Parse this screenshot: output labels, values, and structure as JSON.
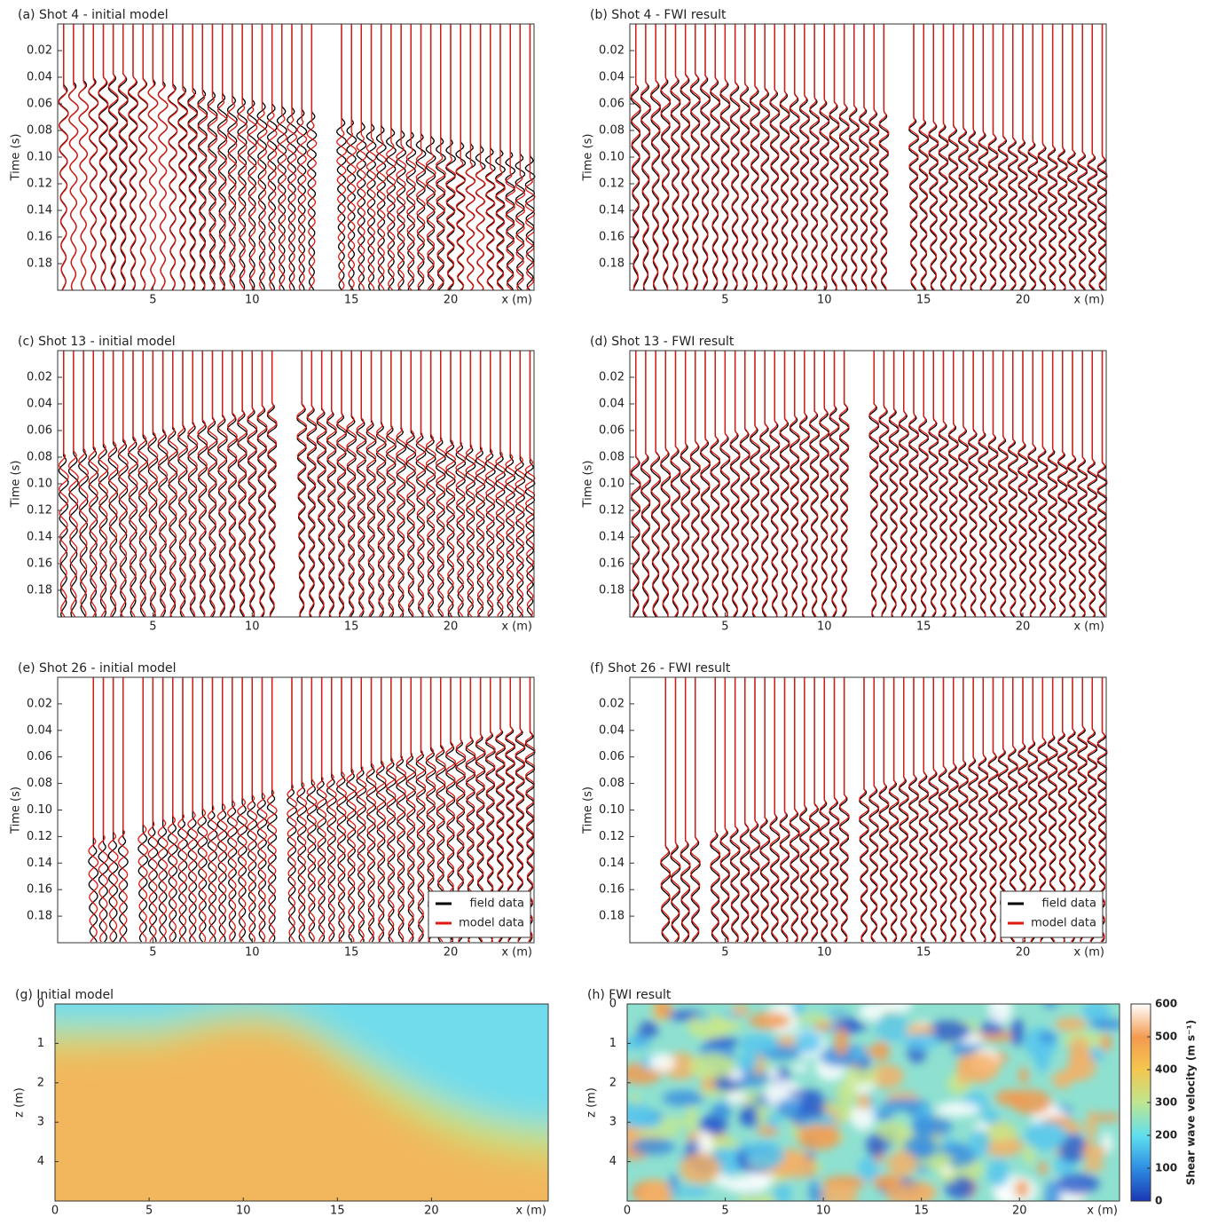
{
  "chart_data": [
    {
      "type": "seismogram",
      "title": "(a) Shot 4 - initial model",
      "xlabel": "x (m)",
      "ylabel": "Time (s)",
      "xlim": [
        0.2,
        24.2
      ],
      "ylim": [
        0,
        0.2
      ],
      "xticks": [
        5,
        10,
        15,
        20
      ],
      "yticks": [
        0.02,
        0.04,
        0.06,
        0.08,
        {
          "value": 0.1,
          "label": "0.10"
        },
        0.12,
        0.14,
        0.16,
        0.18
      ],
      "colors": [
        "#000000",
        "#e3170f"
      ]
    },
    {
      "type": "seismogram",
      "title": "(b) Shot 4 - FWI result",
      "xlabel": "x (m)",
      "ylabel": "Time (s)",
      "xlim": [
        0.2,
        24.2
      ],
      "ylim": [
        0,
        0.2
      ],
      "xticks": [
        5,
        10,
        15,
        20
      ],
      "yticks": [
        0.02,
        0.04,
        0.06,
        0.08,
        {
          "value": 0.1,
          "label": "0.10"
        },
        0.12,
        0.14,
        0.16,
        0.18
      ],
      "colors": [
        "#000000",
        "#e3170f"
      ]
    },
    {
      "type": "seismogram",
      "title": "(c) Shot 13 - initial model",
      "xlabel": "x (m)",
      "ylabel": "Time (s)",
      "xlim": [
        0.2,
        24.2
      ],
      "ylim": [
        0,
        0.2
      ],
      "xticks": [
        5,
        10,
        15,
        20
      ],
      "yticks": [
        0.02,
        0.04,
        0.06,
        0.08,
        {
          "value": 0.1,
          "label": "0.10"
        },
        0.12,
        0.14,
        0.16,
        0.18
      ],
      "colors": [
        "#000000",
        "#e3170f"
      ]
    },
    {
      "type": "seismogram",
      "title": "(d) Shot 13 - FWI result",
      "xlabel": "x (m)",
      "ylabel": "Time (s)",
      "xlim": [
        0.2,
        24.2
      ],
      "ylim": [
        0,
        0.2
      ],
      "xticks": [
        5,
        10,
        15,
        20
      ],
      "yticks": [
        0.02,
        0.04,
        0.06,
        0.08,
        {
          "value": 0.1,
          "label": "0.10"
        },
        0.12,
        0.14,
        0.16,
        0.18
      ],
      "colors": [
        "#000000",
        "#e3170f"
      ]
    },
    {
      "type": "seismogram",
      "title": "(e) Shot 26 - initial model",
      "xlabel": "x (m)",
      "ylabel": "Time (s)",
      "xlim": [
        0.2,
        24.2
      ],
      "ylim": [
        0,
        0.2
      ],
      "xticks": [
        5,
        10,
        15,
        20
      ],
      "yticks": [
        0.02,
        0.04,
        0.06,
        0.08,
        {
          "value": 0.1,
          "label": "0.10"
        },
        0.12,
        0.14,
        0.16,
        0.18
      ],
      "colors": [
        "#000000",
        "#e3170f"
      ],
      "legend": [
        "field data",
        "model data"
      ],
      "legend_loc": "lower right"
    },
    {
      "type": "seismogram",
      "title": "(f) Shot 26 - FWI result",
      "xlabel": "x (m)",
      "ylabel": "Time (s)",
      "xlim": [
        0.2,
        24.2
      ],
      "ylim": [
        0,
        0.2
      ],
      "xticks": [
        5,
        10,
        15,
        20
      ],
      "yticks": [
        0.02,
        0.04,
        0.06,
        0.08,
        {
          "value": 0.1,
          "label": "0.10"
        },
        0.12,
        0.14,
        0.16,
        0.18
      ],
      "colors": [
        "#000000",
        "#e3170f"
      ],
      "legend": [
        "field data",
        "model data"
      ],
      "legend_loc": "lower right"
    },
    {
      "type": "heatmap",
      "title": "(g) Initial model",
      "xlabel": "x (m)",
      "ylabel": "z (m)",
      "xlim": [
        0,
        26.2
      ],
      "ylim": [
        0,
        5
      ],
      "xticks": [
        0,
        5,
        10,
        15,
        20
      ],
      "yticks": [
        0,
        1,
        2,
        3,
        4
      ]
    },
    {
      "type": "heatmap",
      "title": "(h) FWI result",
      "xlabel": "x (m)",
      "ylabel": "z (m)",
      "xlim": [
        0,
        25.1
      ],
      "ylim": [
        0,
        5
      ],
      "xticks": [
        0,
        5,
        10,
        15,
        20
      ],
      "yticks": [
        0,
        1,
        2,
        3,
        4
      ],
      "colorbar": {
        "label": "Shear wave velocity (m s⁻¹)",
        "lim": [
          0,
          600
        ],
        "ticks": [
          0,
          100,
          200,
          300,
          400,
          500,
          600
        ]
      }
    }
  ]
}
